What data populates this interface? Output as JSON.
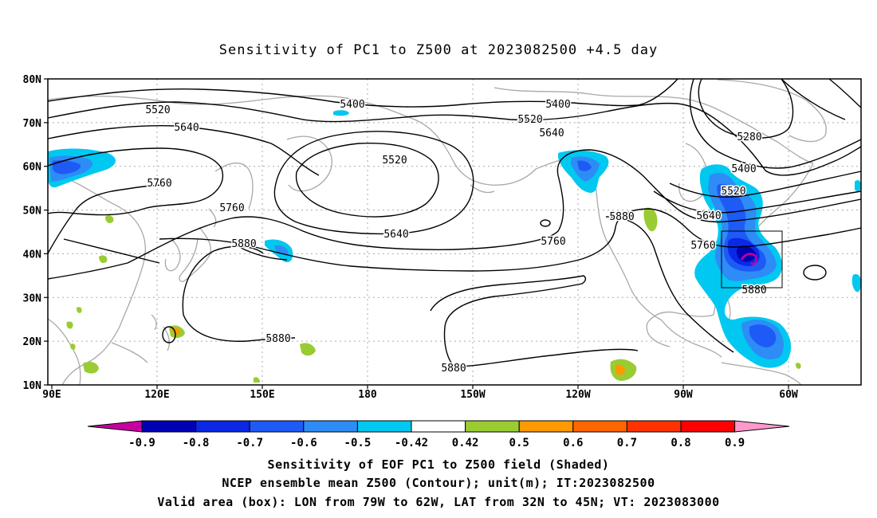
{
  "title": "Sensitivity of PC1 to Z500 at 2023082500 +4.5 day",
  "lat_labels": [
    "80N",
    "70N",
    "60N",
    "50N",
    "40N",
    "30N",
    "20N",
    "10N"
  ],
  "lon_labels": [
    "90E",
    "120E",
    "150E",
    "180",
    "150W",
    "120W",
    "90W",
    "60W"
  ],
  "contour_labels": {
    "c5520_a": "5520",
    "c5640_a": "5640",
    "c5400_a": "5400",
    "c5400_b": "5400",
    "c5520_b": "5520",
    "c5640_b": "5640",
    "c5520_c": "5520",
    "c5280": "5280",
    "c5400_c": "5400",
    "c5520_d": "5520",
    "c5760_a": "5760",
    "c5760_b": "5760",
    "c5640_c": "5640",
    "c5880_a": "5880",
    "c5880_b": "5880",
    "c5760_c": "5760",
    "c5640_d": "5640",
    "c5760_d": "5760",
    "c5880_c": "5880",
    "c5880_d": "5880",
    "c5880_e": "5880"
  },
  "colorbar": {
    "labels": [
      "-0.9",
      "-0.8",
      "-0.7",
      "-0.6",
      "-0.5",
      "-0.42",
      "0.42",
      "0.5",
      "0.6",
      "0.7",
      "0.8",
      "0.9"
    ],
    "colors": [
      "#0000b4",
      "#0a28e6",
      "#1e5af5",
      "#2d8cf5",
      "#00c8f0",
      "#ffffff",
      "#99cc33",
      "#ff9900",
      "#ff6600",
      "#ff3300",
      "#ff0000"
    ],
    "low_color": "#c800a0",
    "high_color": "#ff99cc"
  },
  "caption": {
    "line1": "Sensitivity of EOF PC1 to Z500 field (Shaded)",
    "line2": "NCEP ensemble mean Z500 (Contour); unit(m); IT:2023082500",
    "line3": "Valid area (box): LON from 79W to 62W, LAT from 32N to 45N; VT: 2023083000"
  }
}
